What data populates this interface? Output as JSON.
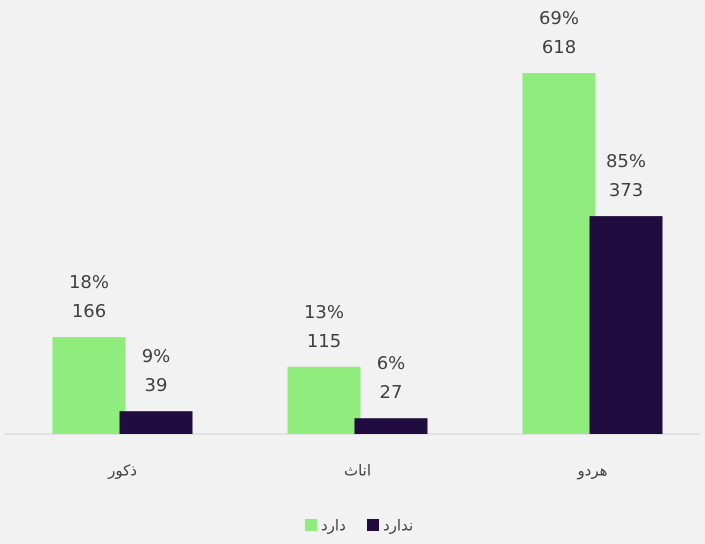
{
  "chart_data": {
    "type": "bar",
    "categories": [
      "ذکور",
      "اناث",
      "هردو"
    ],
    "series": [
      {
        "name": "دارد",
        "color": "#90ec7c",
        "values": [
          166,
          115,
          618
        ],
        "percent": [
          18,
          13,
          69
        ],
        "percent_labels": [
          "18%",
          "13%",
          "69%"
        ]
      },
      {
        "name": "ندارد",
        "color": "#200c3f",
        "values": [
          39,
          27,
          373
        ],
        "percent": [
          9,
          6,
          85
        ],
        "percent_labels": [
          "9%",
          "6%",
          "85%"
        ]
      }
    ],
    "legend": "bottom"
  }
}
